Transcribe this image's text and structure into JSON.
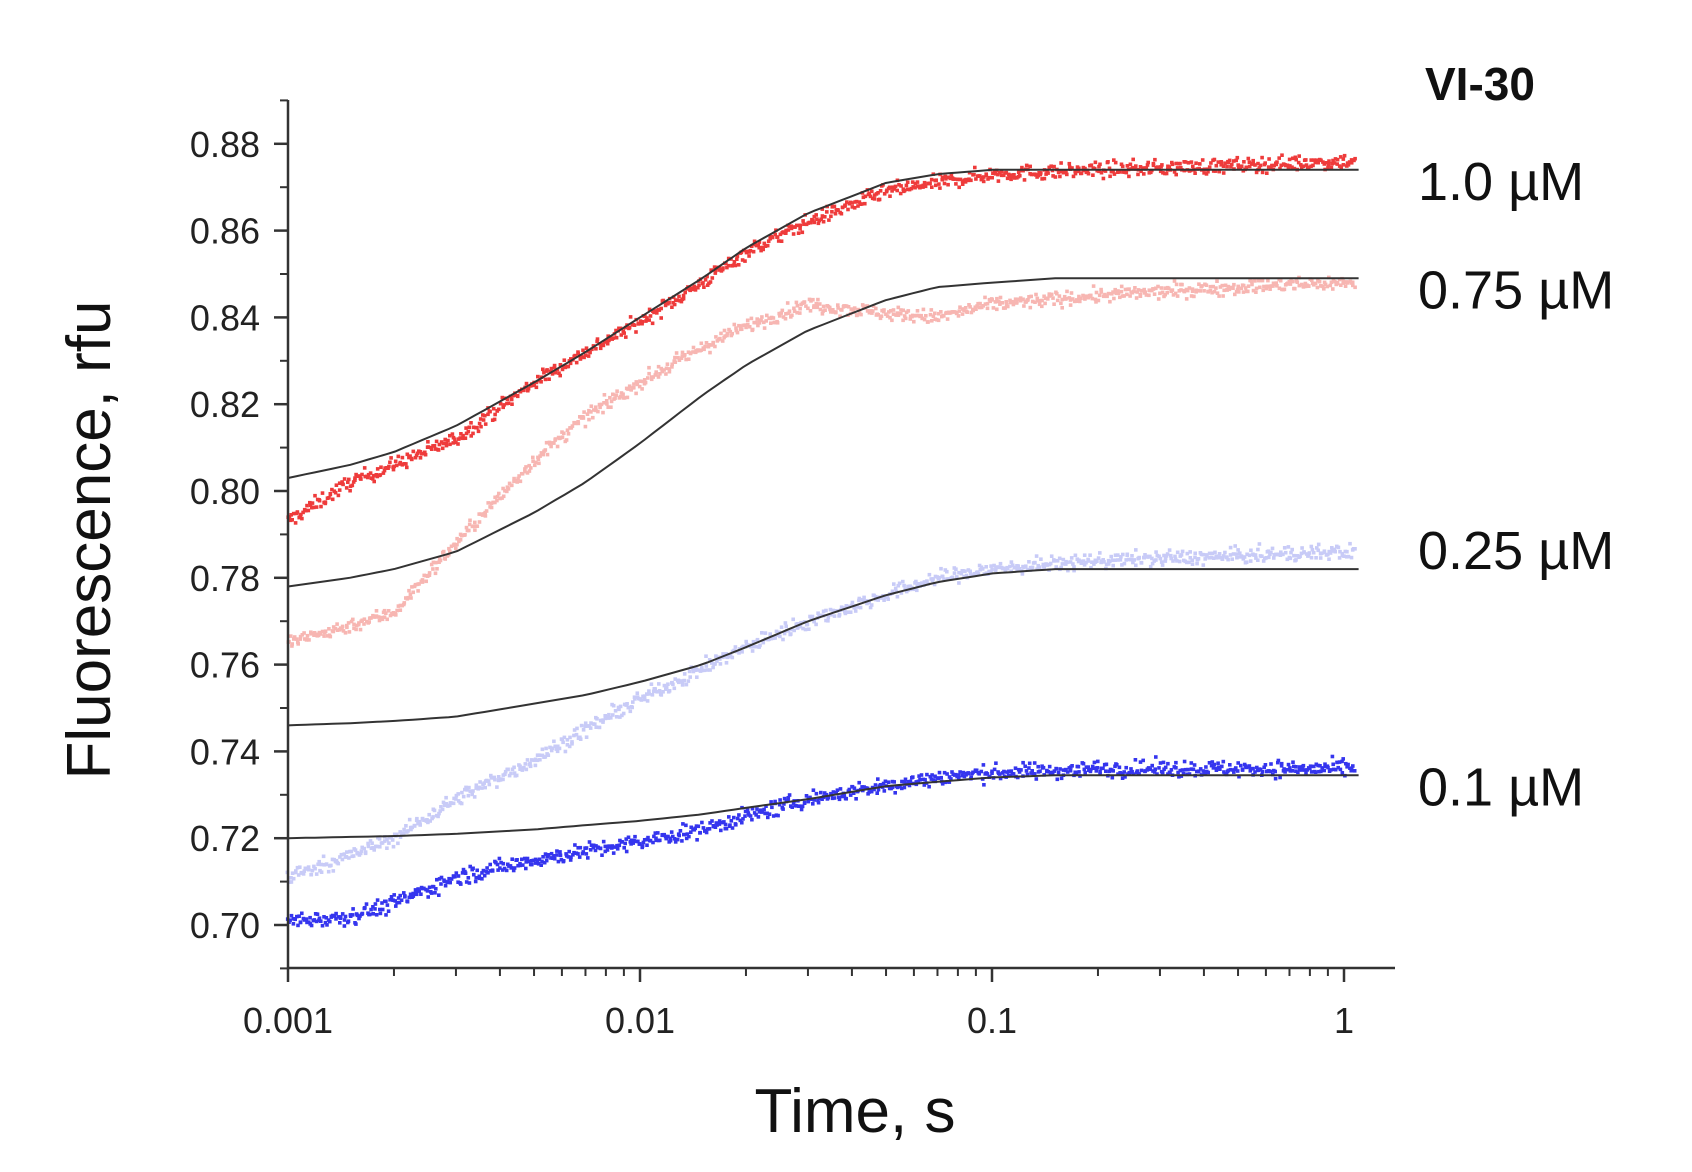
{
  "chart_data": {
    "type": "scatter",
    "title": "VI-30",
    "xlabel": "Time, s",
    "ylabel": "Fluorescence, rfu",
    "xscale": "log",
    "xlim": [
      0.001,
      1.1
    ],
    "ylim": [
      0.69,
      0.89
    ],
    "xticks": [
      {
        "value": 0.001,
        "label": "0.001"
      },
      {
        "value": 0.01,
        "label": "0.01"
      },
      {
        "value": 0.1,
        "label": "0.1"
      },
      {
        "value": 1,
        "label": "1"
      }
    ],
    "yticks": [
      {
        "value": 0.7,
        "label": "0.70"
      },
      {
        "value": 0.72,
        "label": "0.72"
      },
      {
        "value": 0.74,
        "label": "0.74"
      },
      {
        "value": 0.76,
        "label": "0.76"
      },
      {
        "value": 0.78,
        "label": "0.78"
      },
      {
        "value": 0.8,
        "label": "0.80"
      },
      {
        "value": 0.82,
        "label": "0.82"
      },
      {
        "value": 0.84,
        "label": "0.84"
      },
      {
        "value": 0.86,
        "label": "0.86"
      },
      {
        "value": 0.88,
        "label": "0.88"
      }
    ],
    "series": [
      {
        "name": "1.0 µM",
        "color": "#ee3b3b",
        "fit_color": "#333333",
        "data_x": [
          0.001,
          0.0015,
          0.002,
          0.003,
          0.005,
          0.007,
          0.01,
          0.015,
          0.02,
          0.03,
          0.05,
          0.07,
          0.1,
          0.2,
          0.5,
          1.0
        ],
        "data_y": [
          0.793,
          0.802,
          0.806,
          0.812,
          0.825,
          0.832,
          0.839,
          0.848,
          0.855,
          0.862,
          0.869,
          0.871,
          0.873,
          0.874,
          0.875,
          0.876
        ],
        "fit_x": [
          0.001,
          0.0015,
          0.002,
          0.003,
          0.005,
          0.007,
          0.01,
          0.015,
          0.02,
          0.03,
          0.05,
          0.07,
          0.1,
          0.2,
          0.5,
          1.1
        ],
        "fit_y": [
          0.803,
          0.806,
          0.809,
          0.815,
          0.825,
          0.832,
          0.84,
          0.849,
          0.856,
          0.864,
          0.871,
          0.873,
          0.874,
          0.874,
          0.874,
          0.874
        ]
      },
      {
        "name": "0.75 µM",
        "color": "#f7b6b2",
        "fit_color": "#333333",
        "data_x": [
          0.001,
          0.0015,
          0.002,
          0.003,
          0.005,
          0.007,
          0.01,
          0.015,
          0.02,
          0.03,
          0.05,
          0.07,
          0.1,
          0.2,
          0.5,
          1.0
        ],
        "data_y": [
          0.765,
          0.769,
          0.772,
          0.788,
          0.807,
          0.817,
          0.825,
          0.833,
          0.838,
          0.843,
          0.841,
          0.84,
          0.843,
          0.845,
          0.847,
          0.848
        ],
        "fit_x": [
          0.001,
          0.0015,
          0.002,
          0.003,
          0.005,
          0.007,
          0.01,
          0.015,
          0.02,
          0.03,
          0.05,
          0.07,
          0.1,
          0.15,
          0.3,
          1.1
        ],
        "fit_y": [
          0.778,
          0.78,
          0.782,
          0.786,
          0.795,
          0.802,
          0.811,
          0.822,
          0.829,
          0.837,
          0.844,
          0.847,
          0.848,
          0.849,
          0.849,
          0.849
        ]
      },
      {
        "name": "0.25 µM",
        "color": "#c8cbf7",
        "fit_color": "#333333",
        "data_x": [
          0.001,
          0.0015,
          0.002,
          0.003,
          0.005,
          0.007,
          0.01,
          0.015,
          0.02,
          0.03,
          0.05,
          0.07,
          0.1,
          0.2,
          0.5,
          1.0
        ],
        "data_y": [
          0.711,
          0.716,
          0.72,
          0.729,
          0.738,
          0.745,
          0.752,
          0.759,
          0.764,
          0.77,
          0.776,
          0.78,
          0.782,
          0.784,
          0.785,
          0.786
        ],
        "fit_x": [
          0.001,
          0.0015,
          0.002,
          0.003,
          0.005,
          0.007,
          0.01,
          0.015,
          0.02,
          0.03,
          0.05,
          0.07,
          0.1,
          0.15,
          0.3,
          1.1
        ],
        "fit_y": [
          0.746,
          0.7465,
          0.747,
          0.748,
          0.751,
          0.753,
          0.756,
          0.76,
          0.764,
          0.77,
          0.776,
          0.779,
          0.781,
          0.782,
          0.782,
          0.782
        ]
      },
      {
        "name": "0.1 µM",
        "color": "#3535ee",
        "fit_color": "#333333",
        "data_x": [
          0.001,
          0.0015,
          0.002,
          0.003,
          0.005,
          0.007,
          0.01,
          0.015,
          0.02,
          0.03,
          0.05,
          0.07,
          0.1,
          0.2,
          0.5,
          1.0
        ],
        "data_y": [
          0.701,
          0.702,
          0.705,
          0.711,
          0.715,
          0.717,
          0.719,
          0.722,
          0.725,
          0.729,
          0.732,
          0.734,
          0.735,
          0.736,
          0.736,
          0.736
        ],
        "fit_x": [
          0.001,
          0.002,
          0.003,
          0.005,
          0.007,
          0.01,
          0.015,
          0.02,
          0.03,
          0.05,
          0.07,
          0.1,
          0.15,
          0.3,
          0.6,
          1.1
        ],
        "fit_y": [
          0.72,
          0.7205,
          0.721,
          0.722,
          0.723,
          0.724,
          0.7255,
          0.727,
          0.729,
          0.732,
          0.733,
          0.734,
          0.7345,
          0.7345,
          0.7345,
          0.7345
        ]
      }
    ]
  }
}
